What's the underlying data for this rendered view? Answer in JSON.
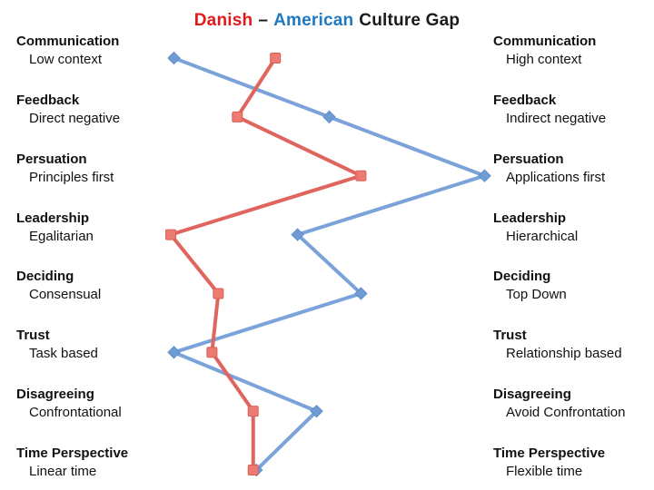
{
  "title": {
    "danish": "Danish",
    "separator": "–",
    "american": "American",
    "rest": "Culture Gap",
    "danish_color": "#e01a1a",
    "american_color": "#1e78c2",
    "text_color": "#1a1a1a"
  },
  "chart_data": {
    "type": "line",
    "title": "Danish – American Culture Gap",
    "orientation": "vertical-category-rows",
    "xlim": [
      0,
      100
    ],
    "grid": false,
    "legend_position": "in-title",
    "rows": [
      {
        "category": "Communication",
        "left": "Low context",
        "right": "High context"
      },
      {
        "category": "Feedback",
        "left": "Direct negative",
        "right": "Indirect negative"
      },
      {
        "category": "Persuation",
        "left": "Principles first",
        "right": "Applications first"
      },
      {
        "category": "Leadership",
        "left": "Egalitarian",
        "right": "Hierarchical"
      },
      {
        "category": "Deciding",
        "left": "Consensual",
        "right": "Top Down"
      },
      {
        "category": "Trust",
        "left": "Task based",
        "right": "Relationship based"
      },
      {
        "category": "Disagreeing",
        "left": "Confrontational",
        "right": "Avoid Confrontation"
      },
      {
        "category": "Time Perspective",
        "left": "Linear time",
        "right": "Flexible time"
      }
    ],
    "series": [
      {
        "name": "Danish",
        "color": "#e0655e",
        "marker_fill": "#ec7b72",
        "marker_stroke": "#d95f57",
        "marker": "square",
        "values": [
          33,
          21,
          60,
          0,
          15,
          13,
          26,
          26
        ]
      },
      {
        "name": "American",
        "color": "#7ba3da",
        "marker_fill": "#6f9cd4",
        "marker_stroke": "#5f8dc8",
        "marker": "diamond",
        "values": [
          1,
          50,
          99,
          40,
          60,
          1,
          46,
          27
        ]
      }
    ]
  }
}
